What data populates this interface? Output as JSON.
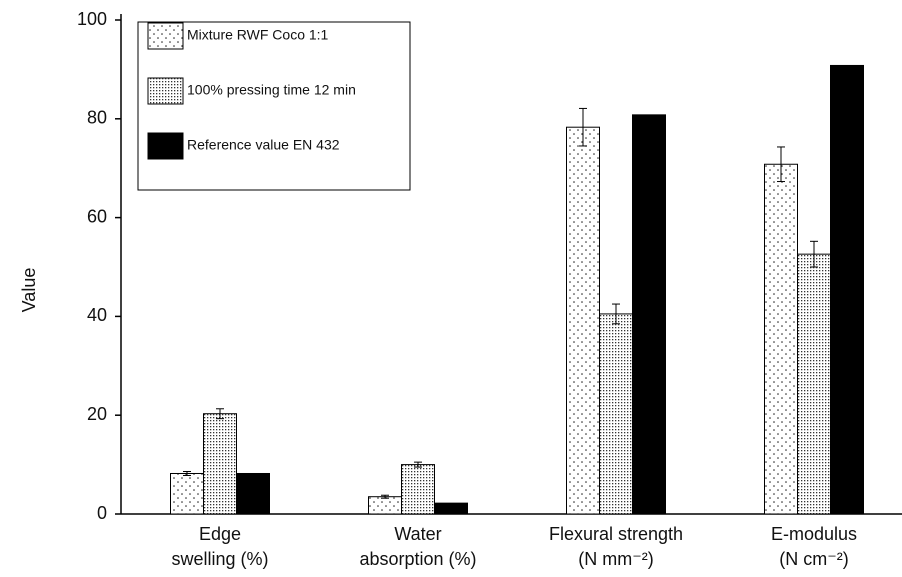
{
  "chart_data": {
    "type": "bar",
    "y_label": "Value",
    "categories": [
      [
        "Edge",
        "swelling (%)"
      ],
      [
        "Water",
        "absorption (%)"
      ],
      [
        "Flexural strength",
        "(N mm⁻²)"
      ],
      [
        "E-modulus",
        "(N cm⁻²)"
      ]
    ],
    "series": [
      {
        "name": "Mixture RWF Coco 1:1",
        "pattern": "sparse-dots",
        "values": [
          8.2,
          3.5,
          78.3,
          70.8
        ],
        "errors": [
          0.4,
          0.3,
          3.8,
          3.5
        ]
      },
      {
        "name": "100% pressing time 12 min",
        "pattern": "dense-dots",
        "values": [
          20.3,
          10.0,
          40.5,
          52.6
        ],
        "errors": [
          1.0,
          0.5,
          2.0,
          2.6
        ]
      },
      {
        "name": "Reference value EN 432",
        "pattern": "solid",
        "color": "#000000",
        "values": [
          8.2,
          2.2,
          80.8,
          90.8
        ]
      }
    ],
    "ylim": [
      0,
      100
    ],
    "yticks": [
      0,
      20,
      40,
      60,
      80,
      100
    ]
  }
}
